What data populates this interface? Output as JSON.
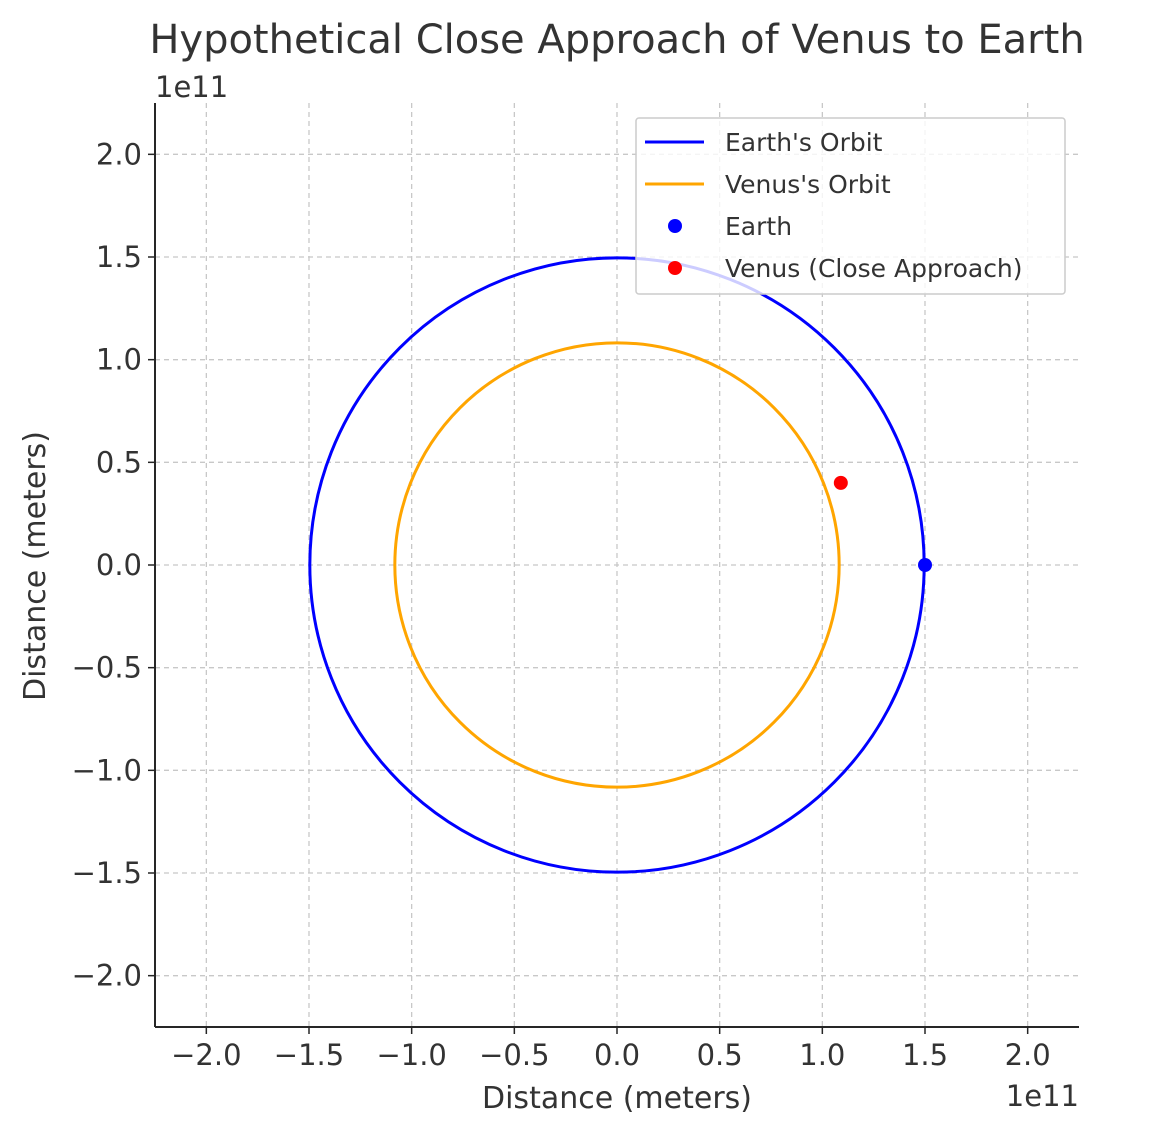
{
  "chart_data": {
    "type": "line",
    "title": "Hypothetical Close Approach of Venus to Earth",
    "xlabel": "Distance (meters)",
    "ylabel": "Distance (meters)",
    "x_offset_label": "1e11",
    "y_offset_label": "1e11",
    "xlim": [
      -2.25,
      2.25
    ],
    "ylim": [
      -2.25,
      2.25
    ],
    "x_ticks": [
      -2.0,
      -1.5,
      -1.0,
      -0.5,
      0.0,
      0.5,
      1.0,
      1.5,
      2.0
    ],
    "y_ticks": [
      -2.0,
      -1.5,
      -1.0,
      -0.5,
      0.0,
      0.5,
      1.0,
      1.5,
      2.0
    ],
    "x_tick_labels": [
      "−2.0",
      "−1.5",
      "−1.0",
      "−0.5",
      "0.0",
      "0.5",
      "1.0",
      "1.5",
      "2.0"
    ],
    "y_tick_labels": [
      "−2.0",
      "−1.5",
      "−1.0",
      "−0.5",
      "0.0",
      "0.5",
      "1.0",
      "1.5",
      "2.0"
    ],
    "grid": true,
    "legend_position": "top-right",
    "series": [
      {
        "name": "Earth's Orbit",
        "kind": "circle",
        "center": [
          0.0,
          0.0
        ],
        "radius": 1.496,
        "color": "#0000ff"
      },
      {
        "name": "Venus's Orbit",
        "kind": "circle",
        "center": [
          0.0,
          0.0
        ],
        "radius": 1.082,
        "color": "#ffa500"
      },
      {
        "name": "Earth",
        "kind": "point",
        "x": 1.5,
        "y": 0.0,
        "color": "#0000ff"
      },
      {
        "name": "Venus (Close Approach)",
        "kind": "point",
        "x": 1.09,
        "y": 0.4,
        "color": "#ff0000"
      }
    ]
  }
}
